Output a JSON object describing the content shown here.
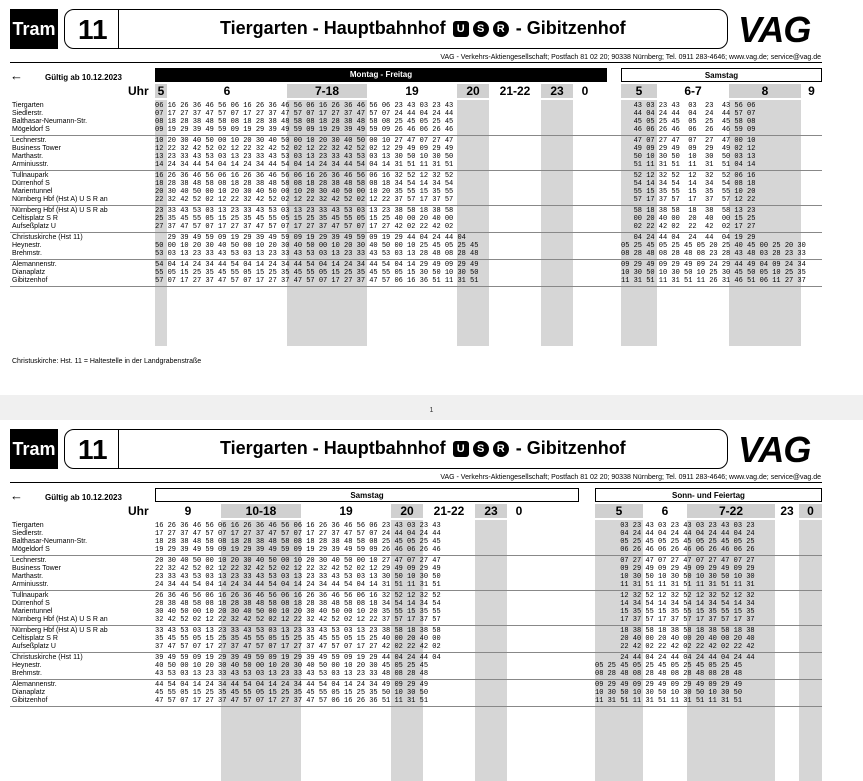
{
  "page1": {
    "tram_label": "Tram",
    "line": "11",
    "route_a": "Tiergarten - Hauptbahnhof",
    "route_b": "- Gibitzenhof",
    "route_icons": [
      "U",
      "S",
      "R"
    ],
    "logo": "VAG",
    "company": "VAG - Verkehrs-Aktiengesellschaft; Postfach 81 02 20; 90338 Nürnberg; Tel. 0911 283-4646; www.vag.de; service@vag.de",
    "valid": "Gültig ab 10.12.2023",
    "day_left": "Montag - Freitag",
    "day_right": "Samstag",
    "uhr": "Uhr",
    "hours_left": [
      "5",
      "6",
      "7-18",
      "19",
      "20",
      "21-22",
      "23",
      "0"
    ],
    "hours_right": [
      "5",
      "6-7",
      "8",
      "9"
    ],
    "stops": [
      [
        "Tiergarten",
        "Siedlerstr.",
        "Balthasar-Neumann-Str.",
        "Mögeldorf S"
      ],
      [
        "Lechnerstr.",
        "Business Tower",
        "Marthastr.",
        "Arminiusstr."
      ],
      [
        "Tullnaupark",
        "Dürrenhof S",
        "Marientunnel",
        "Nürnberg Hbf (Hst A) U S R  an"
      ],
      [
        "Nürnberg Hbf (Hst A) U S R  ab",
        "Celtisplatz S R",
        "Aufseßplatz U"
      ],
      [
        "Christuskirche (Hst 11)",
        "Heynestr.",
        "Brehmstr."
      ],
      [
        "Alemannenstr.",
        "Dianaplatz",
        "Gibitzenhof"
      ]
    ],
    "times_left": [
      [
        "06 16 26 36 46 56 06 16 26 36 46 56 06 16 26 36 46 56 06 23 43 03 23 43",
        "07 17 27 37 47 57 07 17 27 37 47 57 07 17 27 37 47 57 07 24 44 04 24 44",
        "08 18 28 38 48 58 08 18 28 38 48 58 08 18 28 38 48 58 08 25 45 05 25 45",
        "09 19 29 39 49 59 09 19 29 39 49 59 09 19 29 39 49 59 09 26 46 06 26 46"
      ],
      [
        "10 20 30 40 50 00 10 20 30 40 50 00 10 20 30 40 50 00 10 27 47 07 27 47",
        "12 22 32 42 52 02 12 22 32 42 52 02 12 22 32 42 52 02 12 29 49 09 29 49",
        "13 23 33 43 53 03 13 23 33 43 53 03 13 23 33 43 53 03 13 30 50 10 30 50",
        "14 24 34 44 54 04 14 24 34 44 54 04 14 24 34 44 54 04 14 31 51 11 31 51"
      ],
      [
        "16 26 36 46 56 06 16 26 36 46 56 06 16 26 36 46 56 06 16 32 52 12 32 52",
        "18 28 38 48 58 08 18 28 38 48 58 08 18 28 38 48 58 08 18 34 54 14 34 54",
        "20 30 40 50 00 10 20 30 40 50 00 10 20 30 40 50 00 10 20 35 55 15 35 55",
        "22 32 42 52 02 12 22 32 42 52 02 12 22 32 42 52 02 12 22 37 57 17 37 57"
      ],
      [
        "23 33 43 53 03 13 23 33 43 53 03 13 23 33 43 53 03 13 23 38 58 18 38 58",
        "25 35 45 55 05 15 25 35 45 55 05 15 25 35 45 55 05 15 25 40 00 20 40 00",
        "27 37 47 57 07 17 27 37 47 57 07 17 27 37 47 57 07 17 27 42 02 22 42 02"
      ],
      [
        "   29 39 49 59 09 19 29 39 49 59 09 19 29 39 49 59 09 19 29 44 04 24 44 04",
        "50 00 10 20 30 40 50 00 10 20 30 40 50 00 10 20 30 40 50 00 10 25 45 05 25 45",
        "53 03 13 23 33 43 53 03 13 23 33 43 53 03 13 23 33 43 53 03 13 28 48 08 28 48"
      ],
      [
        "54 04 14 24 34 44 54 04 14 24 34 44 54 04 14 24 34 44 54 04 14 29 49 09 29 49",
        "55 05 15 25 35 45 55 05 15 25 35 45 55 05 15 25 35 45 55 05 15 30 50 10 30 50",
        "57 07 17 27 37 47 57 07 17 27 37 47 57 07 17 27 37 47 57 06 16 36 51 11 31 51"
      ]
    ],
    "times_right": [
      [
        "   43 03 23 43  03  23  43 56 06",
        "   44 04 24 44  04  24  44 57 07",
        "   45 05 25 45  05  25  45 58 08",
        "   46 06 26 46  06  26  46 59 09"
      ],
      [
        "   47 07 27 47  07  27  47 00 10",
        "   49 09 29 49  09  29  49 02 12",
        "   50 10 30 50  10  30  50 03 13",
        "   51 11 31 51  11  31  51 04 14"
      ],
      [
        "   52 12 32 52  12  32  52 06 16",
        "   54 14 34 54  14  34  54 08 18",
        "   55 15 35 55  15  35  55 10 20",
        "   57 17 37 57  17  37  57 12 22"
      ],
      [
        "   58 18 38 58  18  38  58 13 23",
        "   00 20 40 00  20  40  00 15 25",
        "   02 22 42 02  22  42  02 17 27"
      ],
      [
        "   04 24 44 04  24  44  04 19 29",
        "05 25 45 05 25 45 05 20 25 40 45 00 25 20 30",
        "08 28 48 08 28 48 08 23 28 43 48 03 28 23 33"
      ],
      [
        "09 29 49 09 29 49 09 24 29 44 49 04 09 24 34",
        "10 30 50 10 30 50 10 25 30 45 50 05 10 25 35",
        "11 31 51 11 31 51 11 26 31 46 51 06 11 27 37"
      ]
    ],
    "footnote": "Christuskirche:  Hst. 11 = Haltestelle in der Landgrabenstraße"
  },
  "page_number": "1",
  "page2": {
    "tram_label": "Tram",
    "line": "11",
    "route_a": "Tiergarten - Hauptbahnhof",
    "route_b": "- Gibitzenhof",
    "logo": "VAG",
    "company": "VAG - Verkehrs-Aktiengesellschaft; Postfach 81 02 20; 90338 Nürnberg; Tel. 0911 283-4646; www.vag.de; service@vag.de",
    "valid": "Gültig ab 10.12.2023",
    "day_left": "Samstag",
    "day_right": "Sonn- und Feiertag",
    "uhr": "Uhr",
    "hours_left": [
      "9",
      "10-18",
      "19",
      "20",
      "21-22",
      "23",
      "0"
    ],
    "hours_right": [
      "5",
      "6",
      "7-22",
      "23",
      "0"
    ],
    "stops": [
      [
        "Tiergarten",
        "Siedlerstr.",
        "Balthasar-Neumann-Str.",
        "Mögeldorf S"
      ],
      [
        "Lechnerstr.",
        "Business Tower",
        "Marthastr.",
        "Arminiusstr."
      ],
      [
        "Tullnaupark",
        "Dürrenhof S",
        "Marientunnel",
        "Nürnberg Hbf (Hst A) U S R  an"
      ],
      [
        "Nürnberg Hbf (Hst A) U S R  ab",
        "Celtisplatz S R",
        "Aufseßplatz U"
      ],
      [
        "Christuskirche (Hst 11)",
        "Heynestr.",
        "Brehmstr."
      ],
      [
        "Alemannenstr.",
        "Dianaplatz",
        "Gibitzenhof"
      ]
    ],
    "times_left": [
      [
        "16 26 36 46 56 06 16 26 36 46 56 06 16 26 36 46 56 06 23 43 03 23 43",
        "17 27 37 47 57 07 17 27 37 47 57 07 17 27 37 47 57 07 24 44 04 24 44",
        "18 28 38 48 58 08 18 28 38 48 58 08 18 28 38 48 58 08 25 45 05 25 45",
        "19 29 39 49 59 09 19 29 39 49 59 09 19 29 39 49 59 09 26 46 06 26 46"
      ],
      [
        "20 30 40 50 00 10 20 30 40 50 00 10 20 30 40 50 00 10 27 47 07 27 47",
        "22 32 42 52 02 12 22 32 42 52 02 12 22 32 42 52 02 12 29 49 09 29 49",
        "23 33 43 53 03 13 23 33 43 53 03 13 23 33 43 53 03 13 30 50 10 30 50",
        "24 34 44 54 04 14 24 34 44 54 04 14 24 34 44 54 04 14 31 51 11 31 51"
      ],
      [
        "26 36 46 56 06 16 26 36 46 56 06 16 26 36 46 56 06 16 32 52 12 32 52",
        "28 38 48 58 08 18 28 38 48 58 08 18 28 38 48 58 08 18 34 54 14 34 54",
        "30 40 50 00 10 20 30 40 50 00 10 20 30 40 50 00 10 20 35 55 15 35 55",
        "32 42 52 02 12 22 32 42 52 02 12 22 32 42 52 02 12 22 37 57 17 37 57"
      ],
      [
        "33 43 53 03 13 23 33 43 53 03 13 23 33 43 53 03 13 23 38 58 18 38 58",
        "35 45 55 05 15 25 35 45 55 05 15 25 35 45 55 05 15 25 40 00 20 40 00",
        "37 47 57 07 17 27 37 47 57 07 17 27 37 47 57 07 17 27 42 02 22 42 02"
      ],
      [
        "39 49 59 09 19 29 39 49 59 09 19 29 39 49 59 09 19 29 44 04 24 44 04",
        "40 50 00 10 20 30 40 50 00 10 20 30 40 50 00 10 20 30 45 05 25 45",
        "43 53 03 13 23 33 43 53 03 13 23 33 43 53 03 13 23 33 48 08 28 48"
      ],
      [
        "44 54 04 14 24 34 44 54 04 14 24 34 44 54 04 14 24 34 49 09 29 49",
        "45 55 05 15 25 35 45 55 05 15 25 35 45 55 05 15 25 35 50 10 30 50",
        "47 57 07 17 27 37 47 57 07 17 27 37 47 57 06 16 26 36 51 11 31 51"
      ]
    ],
    "times_right": [
      [
        "      03 23 43 03 23 43 03 23 43 03 23",
        "      04 24 44 04 24 44 04 24 44 04 24",
        "      05 25 45 05 25 45 05 25 45 05 25",
        "      06 26 46 06 26 46 06 26 46 06 26"
      ],
      [
        "      07 27 47 07 27 47 07 27 47 07 27",
        "      09 29 49 09 29 49 09 29 49 09 29",
        "      10 30 50 10 30 50 10 30 50 10 30",
        "      11 31 51 11 31 51 11 31 51 11 31"
      ],
      [
        "      12 32 52 12 32 52 12 32 52 12 32",
        "      14 34 54 14 34 54 14 34 54 14 34",
        "      15 35 55 15 35 55 15 35 55 15 35",
        "      17 37 57 17 37 57 17 37 57 17 37"
      ],
      [
        "      18 38 58 18 38 58 18 38 58 18 38",
        "      20 40 00 20 40 00 20 40 00 20 40",
        "      22 42 02 22 42 02 22 42 02 22 42"
      ],
      [
        "      24 44 04 24 44 04 24 44 04 24 44",
        "05 25 45 05 25 45 05 25 45 05 25 45",
        "08 28 48 08 28 48 08 28 48 08 28 48"
      ],
      [
        "09 29 49 09 29 49 09 29 49 09 29 49",
        "10 30 50 10 30 50 10 30 50 10 30 50",
        "11 31 51 11 31 51 11 31 51 11 31 51"
      ]
    ]
  }
}
